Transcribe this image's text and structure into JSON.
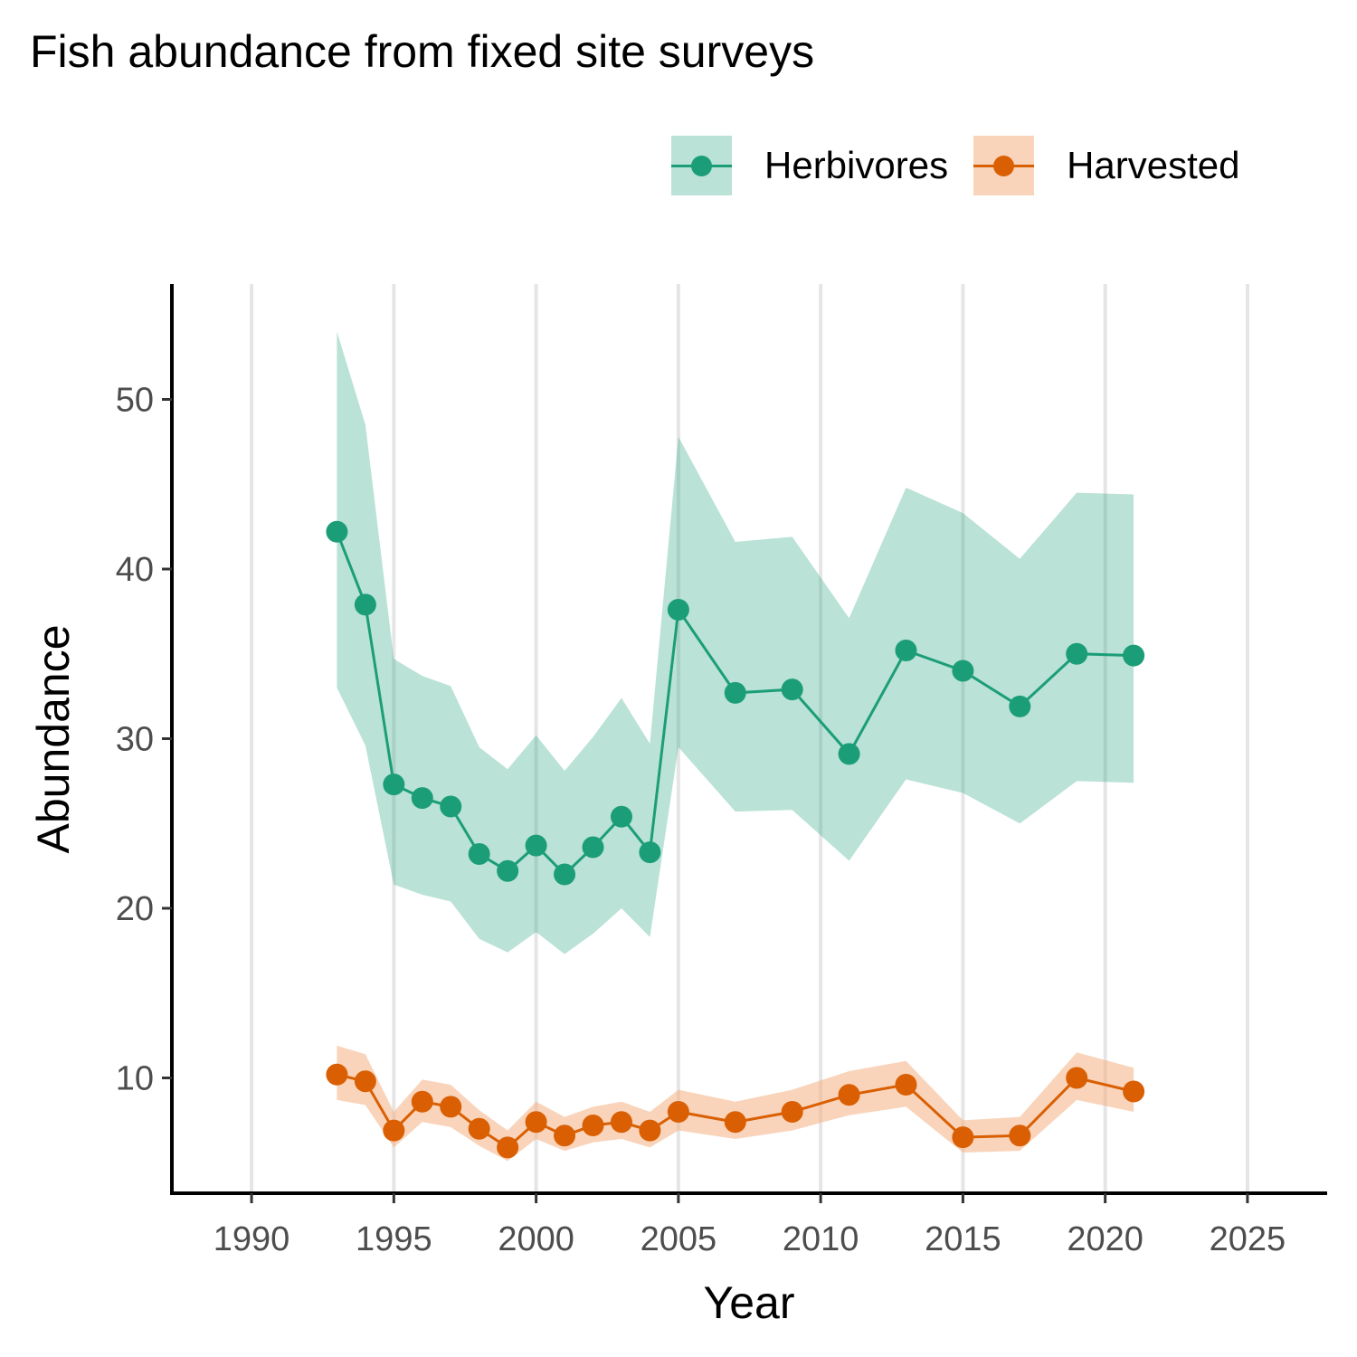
{
  "chart_data": {
    "type": "line",
    "title": "Fish abundance from fixed site surveys",
    "xlabel": "Year",
    "ylabel": "Abundance",
    "xlim": [
      1987.2,
      2027.8
    ],
    "ylim": [
      3.2,
      56.8
    ],
    "x_ticks": [
      1990,
      1995,
      2000,
      2005,
      2010,
      2015,
      2020,
      2025
    ],
    "y_ticks": [
      10,
      20,
      30,
      40,
      50
    ],
    "grid": "vertical major gridlines only",
    "legend_position": "top-right",
    "series": [
      {
        "name": "Herbivores",
        "color": "#1b9e77",
        "band_color": "#1b9e77",
        "x": [
          1993,
          1994,
          1995,
          1996,
          1997,
          1998,
          1999,
          2000,
          2001,
          2002,
          2003,
          2004,
          2005,
          2007,
          2009,
          2011,
          2013,
          2015,
          2017,
          2019,
          2021
        ],
        "y": [
          42.2,
          37.9,
          27.3,
          26.5,
          26.0,
          23.2,
          22.2,
          23.7,
          22.0,
          23.6,
          25.4,
          23.3,
          37.6,
          32.7,
          32.9,
          29.1,
          35.2,
          34.0,
          31.9,
          35.0,
          34.9
        ],
        "lower": [
          33.0,
          29.6,
          21.4,
          20.8,
          20.4,
          18.2,
          17.4,
          18.6,
          17.3,
          18.5,
          20.0,
          18.3,
          29.5,
          25.7,
          25.8,
          22.8,
          27.6,
          26.8,
          25.0,
          27.5,
          27.4
        ],
        "upper": [
          54.0,
          48.5,
          34.7,
          33.7,
          33.1,
          29.5,
          28.2,
          30.2,
          28.1,
          30.1,
          32.4,
          29.7,
          47.8,
          41.6,
          41.9,
          37.1,
          44.8,
          43.3,
          40.6,
          44.5,
          44.4
        ]
      },
      {
        "name": "Harvested",
        "color": "#d95f02",
        "band_color": "#f4b183",
        "x": [
          1993,
          1994,
          1995,
          1996,
          1997,
          1998,
          1999,
          2000,
          2001,
          2002,
          2003,
          2004,
          2005,
          2007,
          2009,
          2011,
          2013,
          2015,
          2017,
          2019,
          2021
        ],
        "y": [
          10.2,
          9.8,
          6.9,
          8.6,
          8.3,
          7.0,
          5.9,
          7.4,
          6.6,
          7.2,
          7.4,
          6.9,
          8.0,
          7.4,
          8.0,
          9.0,
          9.6,
          6.5,
          6.6,
          10.0,
          9.2
        ],
        "lower": [
          8.7,
          8.4,
          5.9,
          7.4,
          7.1,
          6.0,
          5.1,
          6.4,
          5.7,
          6.2,
          6.4,
          5.9,
          6.9,
          6.4,
          6.9,
          7.8,
          8.3,
          5.6,
          5.7,
          8.7,
          8.0
        ],
        "upper": [
          11.9,
          11.4,
          8.0,
          9.9,
          9.6,
          8.1,
          6.9,
          8.6,
          7.7,
          8.3,
          8.6,
          8.0,
          9.3,
          8.6,
          9.3,
          10.4,
          11.0,
          7.5,
          7.7,
          11.5,
          10.6
        ]
      }
    ]
  }
}
